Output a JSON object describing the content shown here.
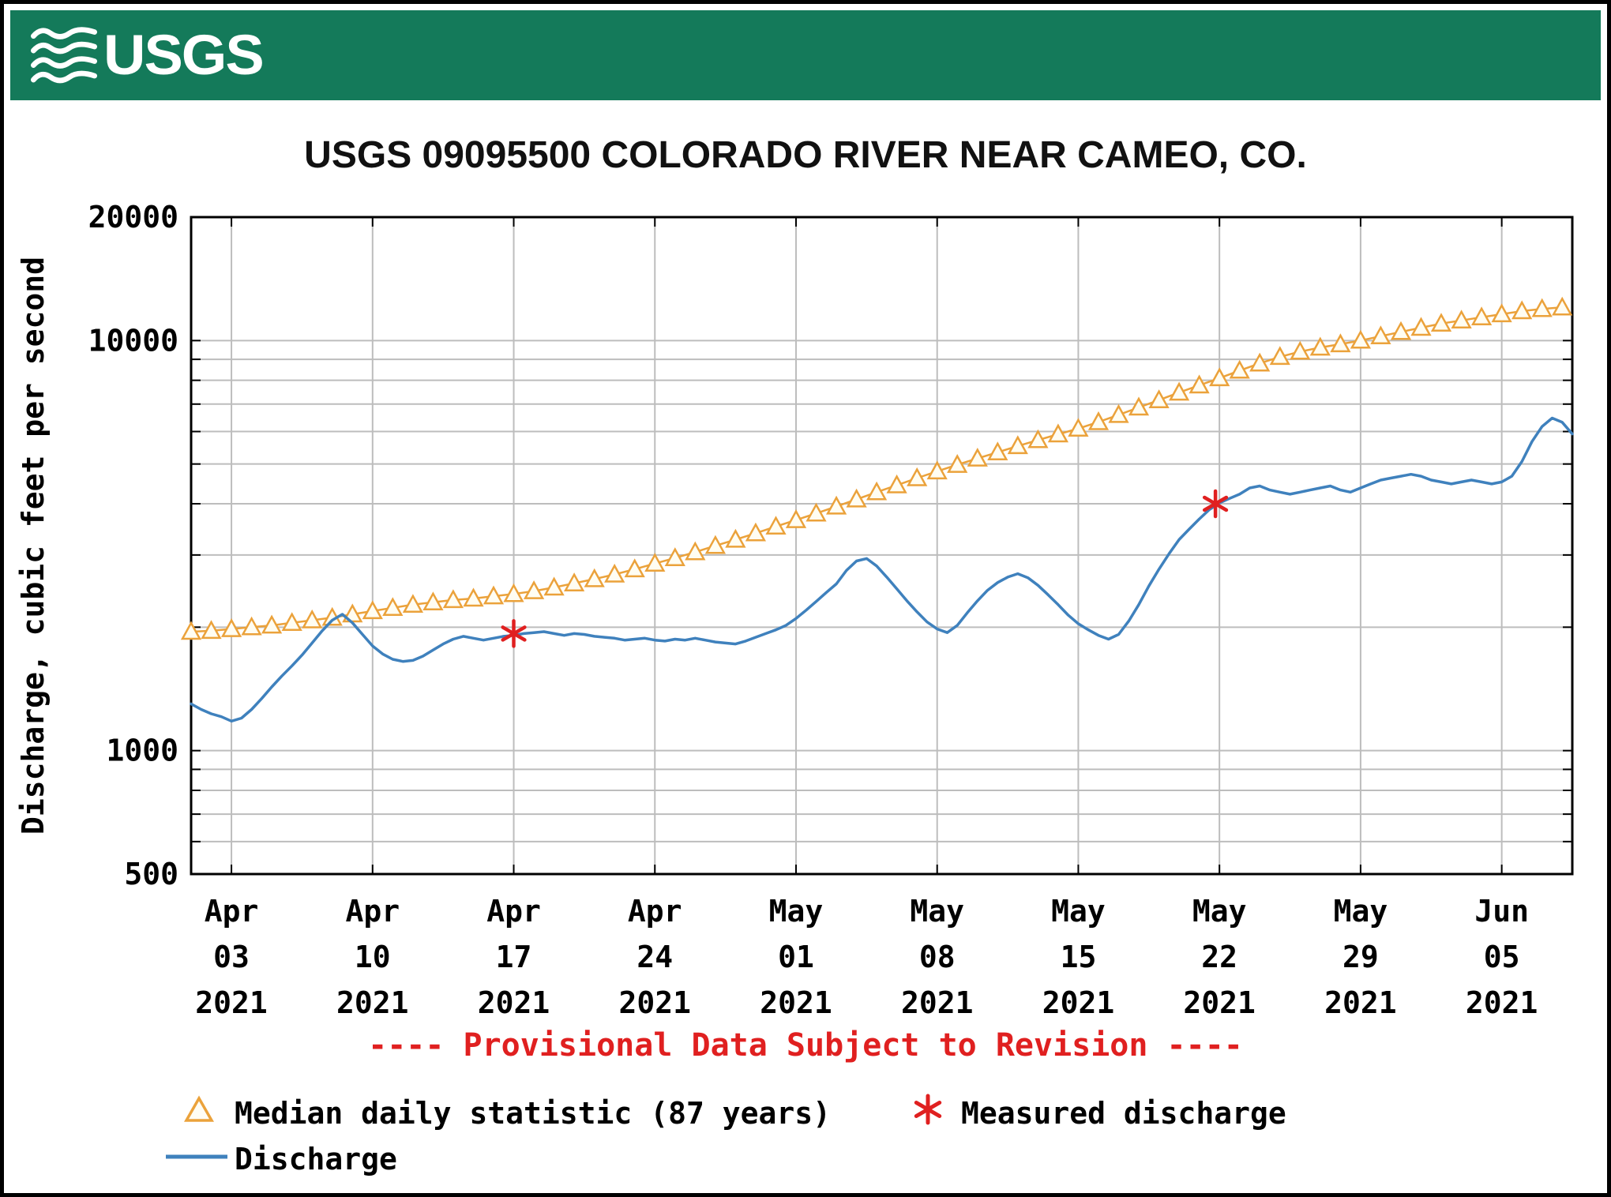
{
  "header": {
    "logo_text": "USGS",
    "background_color": "#147a5a"
  },
  "chart_data": {
    "type": "line",
    "title": "USGS 09095500 COLORADO RIVER NEAR CAMEO, CO.",
    "ylabel": "Discharge, cubic feet per second",
    "y_scale": "log",
    "ylim": [
      500,
      20000
    ],
    "y_tick_values": [
      20000,
      10000,
      1000,
      500
    ],
    "y_tick_labels": [
      "20000",
      "10000",
      "1000",
      "500"
    ],
    "y_gridlines": [
      600,
      700,
      800,
      900,
      1000,
      2000,
      3000,
      4000,
      5000,
      6000,
      7000,
      8000,
      9000,
      10000
    ],
    "x_domain_days": [
      0,
      68.5
    ],
    "x_start_date": "Apr 01 2021",
    "grid": true,
    "legend_position": "bottom",
    "x_ticks": [
      {
        "day": 2,
        "label": [
          "Apr",
          "03",
          "2021"
        ]
      },
      {
        "day": 9,
        "label": [
          "Apr",
          "10",
          "2021"
        ]
      },
      {
        "day": 16,
        "label": [
          "Apr",
          "17",
          "2021"
        ]
      },
      {
        "day": 23,
        "label": [
          "Apr",
          "24",
          "2021"
        ]
      },
      {
        "day": 30,
        "label": [
          "May",
          "01",
          "2021"
        ]
      },
      {
        "day": 37,
        "label": [
          "May",
          "08",
          "2021"
        ]
      },
      {
        "day": 44,
        "label": [
          "May",
          "15",
          "2021"
        ]
      },
      {
        "day": 51,
        "label": [
          "May",
          "22",
          "2021"
        ]
      },
      {
        "day": 58,
        "label": [
          "May",
          "29",
          "2021"
        ]
      },
      {
        "day": 65,
        "label": [
          "Jun",
          "05",
          "2021"
        ]
      }
    ],
    "provisional_note": "---- Provisional Data Subject to Revision ----",
    "colors": {
      "median": "#eba23b",
      "discharge": "#3f81bd",
      "measured": "#e02020",
      "provisional": "#e02020",
      "grid": "#bdbdbd",
      "axis": "#000000"
    },
    "series": [
      {
        "name": "Median daily statistic (87 years)",
        "type": "line+marker",
        "marker": "triangle",
        "color": "#eba23b",
        "x_start": 0,
        "x_step": 1,
        "values": [
          1950,
          1960,
          1980,
          2000,
          2020,
          2050,
          2080,
          2110,
          2150,
          2190,
          2230,
          2270,
          2300,
          2330,
          2350,
          2380,
          2410,
          2450,
          2500,
          2560,
          2620,
          2690,
          2770,
          2860,
          2950,
          3050,
          3160,
          3270,
          3390,
          3520,
          3650,
          3790,
          3940,
          4100,
          4270,
          4440,
          4620,
          4800,
          4980,
          5160,
          5340,
          5530,
          5720,
          5910,
          6100,
          6330,
          6590,
          6870,
          7160,
          7470,
          7780,
          8100,
          8450,
          8800,
          9130,
          9400,
          9620,
          9800,
          10000,
          10250,
          10500,
          10750,
          11000,
          11200,
          11400,
          11600,
          11800,
          11950,
          12050
        ]
      },
      {
        "name": "Discharge",
        "type": "line",
        "color": "#3f81bd",
        "x_start": 0,
        "x_step": 0.5,
        "values": [
          1300,
          1260,
          1230,
          1210,
          1180,
          1200,
          1260,
          1340,
          1430,
          1520,
          1610,
          1710,
          1830,
          1960,
          2080,
          2150,
          2050,
          1920,
          1800,
          1720,
          1670,
          1650,
          1660,
          1700,
          1760,
          1820,
          1870,
          1900,
          1880,
          1860,
          1880,
          1900,
          1910,
          1930,
          1940,
          1950,
          1930,
          1910,
          1930,
          1920,
          1900,
          1890,
          1880,
          1860,
          1870,
          1880,
          1860,
          1850,
          1870,
          1860,
          1880,
          1860,
          1840,
          1830,
          1820,
          1850,
          1890,
          1930,
          1970,
          2020,
          2100,
          2200,
          2310,
          2430,
          2550,
          2750,
          2900,
          2940,
          2820,
          2650,
          2480,
          2320,
          2180,
          2060,
          1980,
          1940,
          2020,
          2170,
          2320,
          2460,
          2570,
          2650,
          2700,
          2640,
          2530,
          2400,
          2270,
          2140,
          2040,
          1970,
          1910,
          1870,
          1920,
          2070,
          2270,
          2520,
          2770,
          3020,
          3270,
          3470,
          3670,
          3870,
          4020,
          4120,
          4220,
          4370,
          4420,
          4320,
          4270,
          4220,
          4270,
          4320,
          4370,
          4420,
          4320,
          4270,
          4370,
          4470,
          4570,
          4620,
          4670,
          4720,
          4670,
          4570,
          4520,
          4470,
          4520,
          4570,
          4520,
          4470,
          4520,
          4670,
          5070,
          5670,
          6170,
          6470,
          6320,
          5920
        ]
      },
      {
        "name": "Measured discharge",
        "type": "marker",
        "marker": "asterisk",
        "color": "#e02020",
        "points": [
          {
            "x": 16,
            "y": 1930
          },
          {
            "x": 50.8,
            "y": 4000
          }
        ]
      }
    ]
  }
}
